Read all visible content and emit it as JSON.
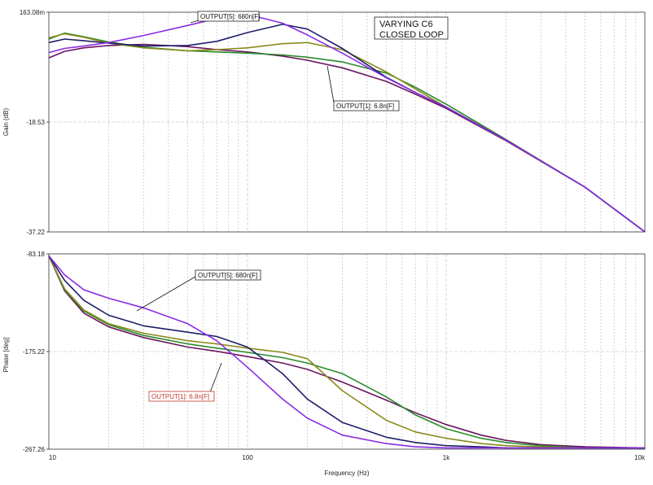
{
  "chart_data": [
    {
      "type": "line",
      "title": [
        "VARYING C6",
        "CLOSED LOOP"
      ],
      "xlabel": "",
      "ylabel": "Gain (dB)",
      "xscale": "log",
      "xlim": [
        10,
        10000
      ],
      "ylim": [
        -37.22,
        0.163
      ],
      "grid": true,
      "ytick_labels": [
        "163.08m",
        "-18.53",
        "-37.22"
      ],
      "ytick_values": [
        0.163,
        -18.53,
        -37.22
      ],
      "xtick_labels": [],
      "series": [
        {
          "color": "#6b1560",
          "x": [
            10,
            12,
            15,
            20,
            30,
            50,
            70,
            100,
            150,
            200,
            300,
            500,
            700,
            1000,
            2000,
            5000,
            10000
          ],
          "y": [
            -7.6,
            -6.5,
            -5.9,
            -5.5,
            -5.3,
            -5.7,
            -6.2,
            -6.6,
            -7.3,
            -8.0,
            -9.3,
            -11.6,
            -13.8,
            -16.2,
            -21.7,
            -29.6,
            -37.2
          ]
        },
        {
          "color": "#2a8a2a",
          "x": [
            10,
            12,
            15,
            20,
            30,
            50,
            70,
            100,
            150,
            200,
            300,
            500,
            700,
            1000,
            2000,
            5000,
            10000
          ],
          "y": [
            -4.4,
            -3.4,
            -4.0,
            -4.9,
            -5.8,
            -6.4,
            -6.6,
            -6.8,
            -7.1,
            -7.5,
            -8.3,
            -10.2,
            -12.6,
            -15.5,
            -21.5,
            -29.6,
            -37.2
          ]
        },
        {
          "color": "#8a8a1e",
          "x": [
            10,
            12,
            15,
            20,
            30,
            50,
            70,
            100,
            150,
            200,
            300,
            500,
            700,
            1000,
            2000,
            5000,
            10000
          ],
          "y": [
            -4.2,
            -3.5,
            -4.1,
            -5.1,
            -5.9,
            -6.4,
            -6.2,
            -5.9,
            -5.2,
            -5.0,
            -6.2,
            -10.0,
            -12.9,
            -16.0,
            -21.6,
            -29.6,
            -37.2
          ]
        },
        {
          "color": "#1e1e6a",
          "x": [
            10,
            12,
            15,
            20,
            30,
            50,
            70,
            100,
            150,
            200,
            300,
            500,
            700,
            1000,
            2000,
            5000,
            10000
          ],
          "y": [
            -5.0,
            -4.4,
            -4.7,
            -5.1,
            -5.6,
            -5.5,
            -4.8,
            -3.3,
            -1.9,
            -2.7,
            -6.0,
            -10.9,
            -13.5,
            -16.0,
            -21.6,
            -29.6,
            -37.2
          ]
        },
        {
          "color": "#8b2be2",
          "x": [
            10,
            12,
            15,
            20,
            30,
            50,
            70,
            100,
            150,
            200,
            300,
            500,
            700,
            1000,
            2000,
            5000,
            10000
          ],
          "y": [
            -6.7,
            -6.0,
            -5.6,
            -5.0,
            -3.8,
            -2.1,
            -0.9,
            -0.2,
            -1.7,
            -3.7,
            -6.8,
            -11.0,
            -13.5,
            -16.0,
            -21.6,
            -29.6,
            -37.2
          ]
        }
      ],
      "annotations": [
        "OUTPUT[5]: 680n[F]",
        "OUTPUT[1]: 6.8n[F]"
      ]
    },
    {
      "type": "line",
      "xlabel": "Frequency (Hz)",
      "ylabel": "Phase [deg]",
      "xscale": "log",
      "xlim": [
        10,
        10000
      ],
      "ylim": [
        -267.26,
        -83.18
      ],
      "grid": true,
      "ytick_labels": [
        "-83.18",
        "-175.22",
        "-267.26"
      ],
      "ytick_values": [
        -83.18,
        -175.22,
        -267.26
      ],
      "xtick_labels": [
        "10",
        "100",
        "1k",
        "10k"
      ],
      "xtick_values": [
        10,
        100,
        1000,
        10000
      ],
      "series": [
        {
          "color": "#6b1560",
          "x": [
            10,
            12,
            15,
            20,
            30,
            50,
            70,
            100,
            150,
            200,
            300,
            500,
            700,
            1000,
            1500,
            2000,
            3000,
            5000,
            10000
          ],
          "y": [
            -85,
            -118,
            -139,
            -152,
            -162,
            -171,
            -175,
            -180,
            -186,
            -192,
            -204,
            -221,
            -233,
            -244,
            -254,
            -259,
            -263,
            -265,
            -266
          ]
        },
        {
          "color": "#2a8a2a",
          "x": [
            10,
            12,
            15,
            20,
            30,
            50,
            70,
            100,
            150,
            200,
            300,
            500,
            700,
            1000,
            1500,
            2000,
            3000,
            5000,
            10000
          ],
          "y": [
            -85,
            -117,
            -137,
            -150,
            -160,
            -168,
            -172,
            -176,
            -181,
            -186,
            -196,
            -218,
            -235,
            -248,
            -257,
            -261,
            -264,
            -266,
            -266
          ]
        },
        {
          "color": "#8a8a1e",
          "x": [
            10,
            12,
            15,
            20,
            30,
            50,
            70,
            100,
            150,
            200,
            300,
            500,
            700,
            1000,
            1500,
            2000,
            3000,
            5000,
            10000
          ],
          "y": [
            -85,
            -116,
            -136,
            -149,
            -158,
            -165,
            -168,
            -172,
            -176,
            -182,
            -212,
            -240,
            -251,
            -257,
            -262,
            -264,
            -265,
            -266,
            -266
          ]
        },
        {
          "color": "#1e1e6a",
          "x": [
            10,
            12,
            15,
            20,
            30,
            50,
            70,
            100,
            150,
            200,
            300,
            500,
            700,
            1000,
            1500,
            2000,
            3000,
            5000,
            10000
          ],
          "y": [
            -85,
            -108,
            -127,
            -141,
            -151,
            -157,
            -161,
            -171,
            -196,
            -220,
            -242,
            -256,
            -261,
            -264,
            -265,
            -266,
            -266,
            -266,
            -266
          ]
        },
        {
          "color": "#8b2be2",
          "x": [
            10,
            12,
            15,
            20,
            30,
            50,
            70,
            100,
            150,
            200,
            300,
            500,
            700,
            1000,
            1500,
            2000,
            3000,
            5000,
            10000
          ],
          "y": [
            -85,
            -103,
            -117,
            -125,
            -134,
            -149,
            -165,
            -190,
            -220,
            -238,
            -254,
            -262,
            -265,
            -266,
            -266,
            -266,
            -266,
            -266,
            -266
          ]
        }
      ],
      "annotations": [
        "OUTPUT[5]: 680n[F]",
        "OUTPUT[1]: 6.8n[F]"
      ]
    }
  ]
}
